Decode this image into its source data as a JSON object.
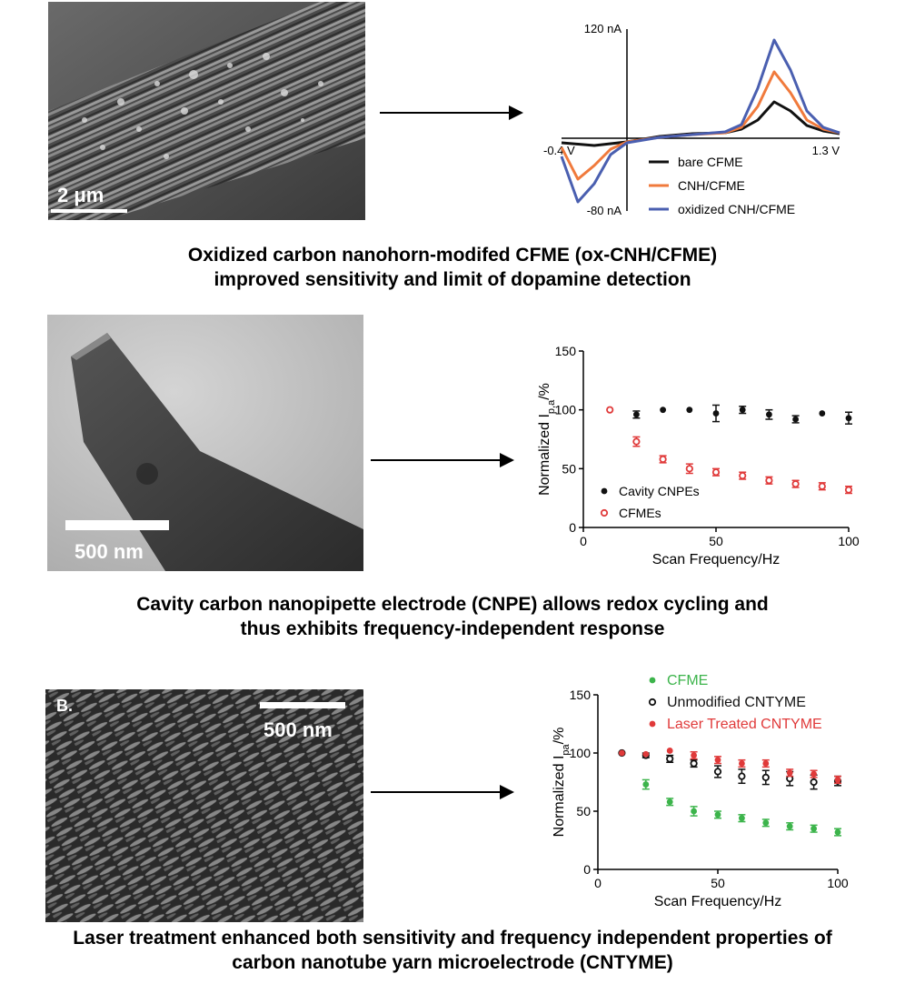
{
  "panels": [
    {
      "micrograph": {
        "scale_label": "2 μm"
      },
      "caption": [
        "Oxidized carbon nanohorn-modifed CFME (ox-CNH/CFME)",
        "improved sensitivity and limit of dopamine detection"
      ]
    },
    {
      "micrograph": {
        "scale_label": "500 nm"
      },
      "caption": [
        "Cavity carbon nanopipette electrode (CNPE) allows redox cycling and",
        "thus exhibits frequency-independent response"
      ]
    },
    {
      "micrograph": {
        "scale_label": "500 nm",
        "panel_letter": "B."
      },
      "caption": [
        "Laser treatment enhanced both sensitivity and frequency independent properties of",
        "carbon nanotube yarn microelectrode (CNTYME)"
      ]
    }
  ],
  "colors": {
    "black": "#111111",
    "orange": "#f07a3c",
    "blue": "#4a5fb0",
    "red": "#e03a3a",
    "green": "#3cb44b"
  },
  "chart_data": [
    {
      "type": "line",
      "xlim": [
        -0.4,
        1.3
      ],
      "ylim": [
        -80,
        120
      ],
      "x_min_label": "-0.4 V",
      "x_max_label": "1.3 V",
      "y_max_label": "120 nA",
      "y_min_label": "-80 nA",
      "legend_placement": "bottom-right",
      "series": [
        {
          "name": "bare CFME",
          "color": "#111111",
          "x": [
            -0.4,
            -0.2,
            0.0,
            0.2,
            0.4,
            0.6,
            0.7,
            0.8,
            0.9,
            1.0,
            1.1,
            1.2,
            1.3
          ],
          "y": [
            -5,
            -8,
            -4,
            2,
            5,
            6,
            10,
            20,
            40,
            30,
            14,
            8,
            5
          ]
        },
        {
          "name": "CNH/CFME",
          "color": "#f07a3c",
          "x": [
            -0.4,
            -0.3,
            -0.2,
            -0.1,
            0.0,
            0.2,
            0.4,
            0.6,
            0.7,
            0.8,
            0.9,
            1.0,
            1.1,
            1.2,
            1.3
          ],
          "y": [
            -10,
            -45,
            -30,
            -12,
            -4,
            1,
            4,
            6,
            12,
            35,
            73,
            50,
            20,
            10,
            6
          ]
        },
        {
          "name": "oxidized CNH/CFME",
          "color": "#4a5fb0",
          "x": [
            -0.4,
            -0.3,
            -0.2,
            -0.1,
            0.0,
            0.2,
            0.4,
            0.6,
            0.7,
            0.8,
            0.9,
            1.0,
            1.1,
            1.2,
            1.3
          ],
          "y": [
            -20,
            -70,
            -50,
            -18,
            -5,
            1,
            4,
            7,
            15,
            55,
            108,
            75,
            30,
            12,
            6
          ]
        }
      ]
    },
    {
      "type": "scatter",
      "xlabel": "Scan Frequency/Hz",
      "ylabel": "Normalized I",
      "ylabel_sub": "p,a",
      "ylabel_suffix": "/%",
      "xlim": [
        0,
        100
      ],
      "ylim": [
        0,
        150
      ],
      "xticks": [
        0,
        50,
        100
      ],
      "yticks": [
        0,
        50,
        100,
        150
      ],
      "legend_placement": "bottom-left",
      "series": [
        {
          "name": "Cavity CNPEs",
          "color": "#111111",
          "marker": "filled",
          "x": [
            10,
            20,
            30,
            40,
            50,
            60,
            70,
            80,
            90,
            100
          ],
          "y": [
            100,
            96,
            100,
            100,
            97,
            100,
            96,
            92,
            97,
            93
          ],
          "err": [
            1,
            3,
            1,
            1,
            7,
            3,
            4,
            3,
            1,
            5
          ]
        },
        {
          "name": "CFMEs",
          "color": "#e03a3a",
          "marker": "open",
          "x": [
            10,
            20,
            30,
            40,
            50,
            60,
            70,
            80,
            90,
            100
          ],
          "y": [
            100,
            73,
            58,
            50,
            47,
            44,
            40,
            37,
            35,
            32
          ],
          "err": [
            1,
            4,
            3,
            4,
            3,
            3,
            3,
            3,
            3,
            3
          ]
        }
      ]
    },
    {
      "type": "scatter",
      "xlabel": "Scan Frequency/Hz",
      "ylabel": "Normalized I",
      "ylabel_sub": "pa",
      "ylabel_suffix": "/%",
      "xlim": [
        0,
        100
      ],
      "ylim": [
        0,
        150
      ],
      "xticks": [
        0,
        50,
        100
      ],
      "yticks": [
        0,
        50,
        100,
        150
      ],
      "legend_placement": "top",
      "series": [
        {
          "name": "CFME",
          "color": "#3cb44b",
          "marker": "filled",
          "x": [
            10,
            20,
            30,
            40,
            50,
            60,
            70,
            80,
            90,
            100
          ],
          "y": [
            100,
            73,
            58,
            50,
            47,
            44,
            40,
            37,
            35,
            32
          ],
          "err": [
            1,
            4,
            3,
            4,
            3,
            3,
            3,
            3,
            3,
            3
          ]
        },
        {
          "name": "Unmodified CNTYME",
          "color": "#111111",
          "marker": "open",
          "x": [
            10,
            20,
            30,
            40,
            50,
            60,
            70,
            80,
            90,
            100
          ],
          "y": [
            100,
            98,
            95,
            91,
            84,
            80,
            79,
            78,
            75,
            76
          ],
          "err": [
            1,
            2,
            3,
            3,
            5,
            6,
            6,
            6,
            6,
            4
          ]
        },
        {
          "name": "Laser Treated CNTYME",
          "color": "#e03a3a",
          "marker": "filled",
          "x": [
            10,
            20,
            30,
            40,
            50,
            60,
            70,
            80,
            90,
            100
          ],
          "y": [
            100,
            99,
            102,
            98,
            94,
            91,
            91,
            83,
            82,
            77
          ],
          "err": [
            1,
            1,
            1,
            3,
            3,
            3,
            3,
            3,
            3,
            3
          ]
        }
      ]
    }
  ]
}
